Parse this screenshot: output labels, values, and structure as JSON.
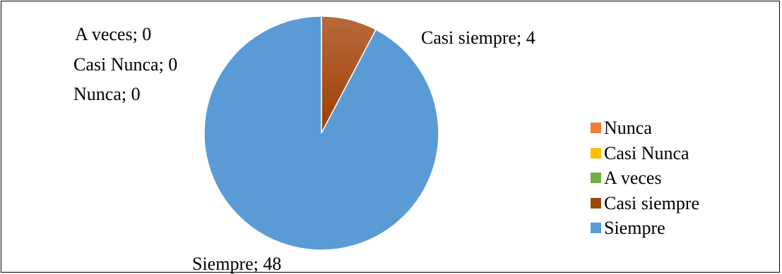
{
  "chart_data": {
    "type": "pie",
    "categories": [
      "Nunca",
      "Casi Nunca",
      "A veces",
      "Casi siempre",
      "Siempre"
    ],
    "values": [
      0,
      0,
      0,
      4,
      48
    ],
    "colors": [
      "#ED7D31",
      "#FFC000",
      "#70AD47",
      "#9E480E",
      "#5B9BD5"
    ],
    "data_labels": [
      "Nunca; 0",
      "Casi Nunca; 0",
      "A veces; 0",
      "Casi siempre; 4",
      "Siempre; 48"
    ],
    "legend": {
      "position": "right",
      "items": [
        "Nunca",
        "Casi Nunca",
        "A veces",
        "Casi siempre",
        "Siempre"
      ]
    },
    "title": ""
  }
}
